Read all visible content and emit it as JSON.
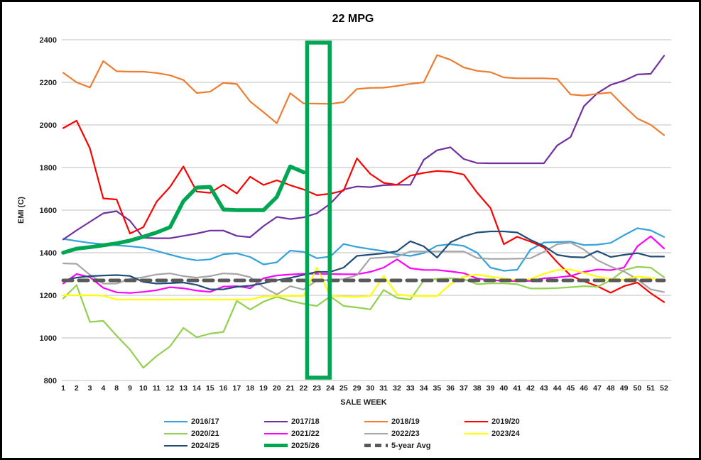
{
  "chart_data": {
    "type": "line",
    "title": "22 MPG",
    "xlabel": "SALE WEEK",
    "ylabel": "EMI (C)",
    "ylim": [
      800,
      2400
    ],
    "ytick_step": 200,
    "grid": "horizontal-only",
    "legend_position": "bottom",
    "gridline_color": "#BFBFBF",
    "categories": [
      "1",
      "2",
      "3",
      "4",
      "8",
      "9",
      "10",
      "11",
      "12",
      "13",
      "14",
      "15",
      "16",
      "17",
      "18",
      "19",
      "20",
      "21",
      "22",
      "23",
      "24",
      "25",
      "29",
      "30",
      "31",
      "32",
      "33",
      "34",
      "35",
      "36",
      "37",
      "38",
      "39",
      "40",
      "41",
      "42",
      "43",
      "44",
      "45",
      "46",
      "47",
      "48",
      "49",
      "50",
      "51",
      "52"
    ],
    "highlight_box": {
      "from_label": "22",
      "to_label": "23",
      "color": "#00A651",
      "meaning": "highlighted sale weeks 22-23"
    },
    "series": [
      {
        "name": "2016/17",
        "color": "#36A2DB",
        "width": 2.2,
        "dash": null,
        "values": [
          1465,
          1455,
          1446,
          1440,
          1435,
          1430,
          1424,
          1408,
          1391,
          1375,
          1364,
          1369,
          1393,
          1397,
          1380,
          1345,
          1355,
          1410,
          1404,
          1374,
          1382,
          1441,
          1427,
          1417,
          1408,
          1392,
          1385,
          1398,
          1433,
          1440,
          1432,
          1400,
          1330,
          1315,
          1320,
          1415,
          1448,
          1450,
          1452,
          1436,
          1438,
          1446,
          1482,
          1515,
          1505,
          1474
        ]
      },
      {
        "name": "2017/18",
        "color": "#7030A0",
        "width": 2.2,
        "dash": null,
        "values": [
          1462,
          1505,
          1545,
          1585,
          1595,
          1550,
          1470,
          1468,
          1468,
          1479,
          1490,
          1504,
          1504,
          1479,
          1473,
          1525,
          1568,
          1558,
          1566,
          1585,
          1630,
          1697,
          1711,
          1708,
          1717,
          1719,
          1719,
          1836,
          1881,
          1895,
          1840,
          1821,
          1820,
          1820,
          1820,
          1820,
          1820,
          1904,
          1943,
          2088,
          2149,
          2188,
          2208,
          2237,
          2240,
          2325
        ]
      },
      {
        "name": "2018/19",
        "color": "#ED7D31",
        "width": 2.2,
        "dash": null,
        "values": [
          2245,
          2200,
          2176,
          2300,
          2252,
          2250,
          2250,
          2244,
          2233,
          2211,
          2150,
          2156,
          2198,
          2192,
          2110,
          2060,
          2008,
          2149,
          2101,
          2100,
          2099,
          2107,
          2169,
          2174,
          2175,
          2183,
          2193,
          2200,
          2328,
          2306,
          2270,
          2254,
          2248,
          2223,
          2219,
          2219,
          2219,
          2216,
          2143,
          2138,
          2146,
          2152,
          2088,
          2030,
          2001,
          1952
        ]
      },
      {
        "name": "2019/20",
        "color": "#FF0000",
        "width": 2.2,
        "dash": null,
        "values": [
          1985,
          2020,
          1890,
          1655,
          1650,
          1490,
          1520,
          1640,
          1709,
          1805,
          1687,
          1681,
          1720,
          1678,
          1757,
          1718,
          1740,
          1717,
          1697,
          1670,
          1677,
          1692,
          1843,
          1770,
          1728,
          1719,
          1762,
          1775,
          1784,
          1780,
          1767,
          1682,
          1610,
          1440,
          1475,
          1452,
          1425,
          1355,
          1293,
          1266,
          1243,
          1212,
          1243,
          1260,
          1210,
          1168
        ]
      },
      {
        "name": "2020/21",
        "color": "#92D050",
        "width": 2.2,
        "dash": null,
        "values": [
          1185,
          1248,
          1075,
          1080,
          1010,
          945,
          860,
          915,
          960,
          1047,
          1003,
          1020,
          1028,
          1174,
          1133,
          1170,
          1193,
          1174,
          1160,
          1150,
          1195,
          1150,
          1143,
          1134,
          1225,
          1188,
          1180,
          1270,
          1277,
          1280,
          1276,
          1252,
          1256,
          1256,
          1252,
          1232,
          1232,
          1234,
          1238,
          1243,
          1240,
          1270,
          1318,
          1334,
          1330,
          1285
        ]
      },
      {
        "name": "2021/22",
        "color": "#FF00FF",
        "width": 2.2,
        "dash": null,
        "values": [
          1255,
          1300,
          1285,
          1235,
          1214,
          1211,
          1216,
          1224,
          1238,
          1233,
          1222,
          1216,
          1241,
          1243,
          1233,
          1280,
          1293,
          1298,
          1301,
          1301,
          1300,
          1299,
          1299,
          1310,
          1330,
          1369,
          1327,
          1319,
          1319,
          1312,
          1304,
          1279,
          1271,
          1268,
          1266,
          1268,
          1280,
          1284,
          1291,
          1310,
          1321,
          1318,
          1330,
          1430,
          1477,
          1420
        ]
      },
      {
        "name": "2022/23",
        "color": "#A6A6A6",
        "width": 2.2,
        "dash": null,
        "values": [
          1350,
          1348,
          1296,
          1255,
          1255,
          1277,
          1285,
          1298,
          1303,
          1290,
          1283,
          1290,
          1303,
          1300,
          1285,
          1238,
          1204,
          1243,
          1227,
          1270,
          1272,
          1276,
          1295,
          1374,
          1378,
          1381,
          1406,
          1406,
          1406,
          1406,
          1406,
          1375,
          1371,
          1371,
          1372,
          1374,
          1404,
          1440,
          1447,
          1415,
          1365,
          1335,
          1312,
          1275,
          1228,
          1215
        ]
      },
      {
        "name": "2023/24",
        "color": "#FFFF00",
        "width": 2.2,
        "dash": null,
        "values": [
          1200,
          1200,
          1200,
          1198,
          1180,
          1180,
          1180,
          1180,
          1180,
          1180,
          1180,
          1180,
          1180,
          1180,
          1180,
          1195,
          1197,
          1197,
          1197,
          1330,
          1197,
          1195,
          1193,
          1197,
          1291,
          1205,
          1197,
          1197,
          1197,
          1252,
          1288,
          1297,
          1288,
          1279,
          1271,
          1276,
          1301,
          1319,
          1321,
          1305,
          1288,
          1277,
          1274,
          1288,
          1282,
          1268
        ]
      },
      {
        "name": "2024/25",
        "color": "#1F4E79",
        "width": 2.2,
        "dash": null,
        "values": [
          1270,
          1283,
          1290,
          1293,
          1295,
          1291,
          1263,
          1255,
          1257,
          1260,
          1249,
          1228,
          1228,
          1240,
          1245,
          1257,
          1271,
          1282,
          1296,
          1310,
          1310,
          1330,
          1385,
          1391,
          1397,
          1407,
          1454,
          1430,
          1377,
          1449,
          1477,
          1495,
          1500,
          1500,
          1495,
          1460,
          1432,
          1390,
          1380,
          1378,
          1408,
          1380,
          1390,
          1398,
          1382,
          1382
        ]
      },
      {
        "name": "2025/26",
        "color": "#00A651",
        "width": 5.5,
        "dash": null,
        "values": [
          1400,
          1419,
          1426,
          1435,
          1444,
          1457,
          1475,
          1495,
          1520,
          1642,
          1706,
          1709,
          1603,
          1600,
          1600,
          1600,
          1662,
          1805,
          1778,
          null,
          null,
          null,
          null,
          null,
          null,
          null,
          null,
          null,
          null,
          null,
          null,
          null,
          null,
          null,
          null,
          null,
          null,
          null,
          null,
          null,
          null,
          null,
          null,
          null,
          null,
          null
        ]
      },
      {
        "name": "5-year Avg",
        "color": "#595959",
        "width": 5,
        "dash": "13 9",
        "values": [
          1270,
          1270,
          1270,
          1270,
          1270,
          1270,
          1270,
          1270,
          1270,
          1270,
          1270,
          1270,
          1270,
          1270,
          1270,
          1270,
          1270,
          1270,
          1270,
          1270,
          1270,
          1270,
          1270,
          1270,
          1270,
          1270,
          1270,
          1270,
          1270,
          1270,
          1270,
          1270,
          1270,
          1270,
          1270,
          1270,
          1270,
          1270,
          1270,
          1270,
          1270,
          1270,
          1270,
          1270,
          1270,
          1270
        ]
      }
    ]
  }
}
